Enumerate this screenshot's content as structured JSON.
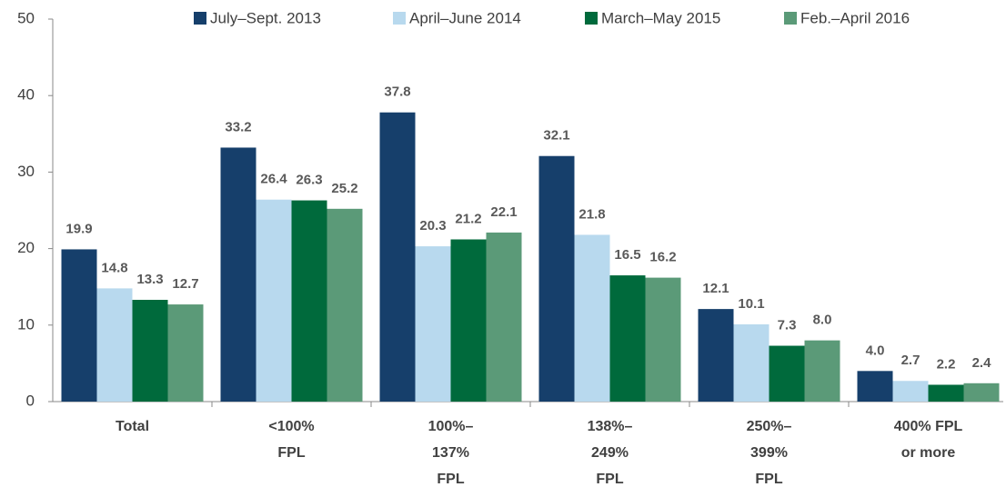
{
  "chart_data": {
    "type": "bar",
    "categories": [
      [
        "Total"
      ],
      [
        "<100%",
        "FPL"
      ],
      [
        "100%–",
        "137%",
        "FPL"
      ],
      [
        "138%–",
        "249%",
        "FPL"
      ],
      [
        "250%–",
        "399%",
        "FPL"
      ],
      [
        "400% FPL",
        "or more"
      ]
    ],
    "series": [
      {
        "name": "July–Sept. 2013",
        "color": "#163f6b",
        "values": [
          19.9,
          33.2,
          37.8,
          32.1,
          12.1,
          4
        ],
        "value_labels": [
          "19.9",
          "33.2",
          "37.8",
          "32.1",
          "12.1",
          "4.0"
        ]
      },
      {
        "name": "April–June 2014",
        "color": "#b8d9ee",
        "values": [
          14.8,
          26.4,
          20.3,
          21.8,
          10.1,
          2.7
        ],
        "value_labels": [
          "14.8",
          "26.4",
          "20.3",
          "21.8",
          "10.1",
          "2.7"
        ]
      },
      {
        "name": "March–May 2015",
        "color": "#006a3c",
        "values": [
          13.3,
          26.3,
          21.2,
          16.5,
          7.3,
          2.2
        ],
        "value_labels": [
          "13.3",
          "26.3",
          "21.2",
          "16.5",
          "7.3",
          "2.2"
        ]
      },
      {
        "name": "Feb.–April 2016",
        "color": "#5b9a78",
        "values": [
          12.7,
          25.2,
          22.1,
          16.2,
          8,
          2.4
        ],
        "value_labels": [
          "12.7",
          "25.2",
          "22.1",
          "16.2",
          "8.0",
          "2.4"
        ]
      }
    ],
    "ylim": [
      0,
      50
    ],
    "yticks": [
      0,
      10,
      20,
      30,
      40,
      50
    ],
    "grid": false,
    "legend": "top"
  }
}
